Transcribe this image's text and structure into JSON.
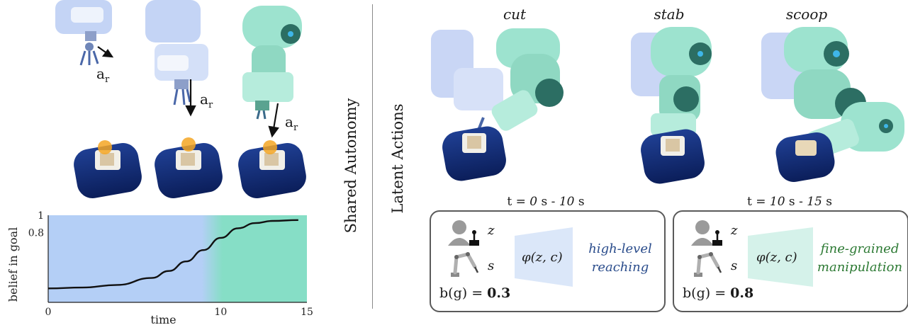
{
  "left": {
    "action_label": "a",
    "action_sub": "r",
    "belief_plot": {
      "ylabel": "belief in goal",
      "xlabel": "time",
      "y_ticks": [
        "1",
        "0.8"
      ],
      "x_ticks": [
        "0",
        "10",
        "15"
      ],
      "regions": [
        {
          "from": 0,
          "to": 9.5,
          "color": "#b4cff6"
        },
        {
          "from": 9.5,
          "to": 15,
          "color": "#86dec6"
        }
      ]
    }
  },
  "divider_label": "Shared Autonomy",
  "right": {
    "side_label": "Latent Actions",
    "columns": [
      {
        "title": "cut",
        "arm_color": "#9de3cf"
      },
      {
        "title": "stab",
        "arm_color": "#9de3cf"
      },
      {
        "title": "scoop",
        "arm_color": "#9de3cf"
      }
    ],
    "panels": [
      {
        "time_label": {
          "prefix": "t = ",
          "start": "0",
          "mid": " s - ",
          "end": "10",
          "suffix": " s"
        },
        "z": "z",
        "s": "s",
        "phi": "φ(z, c)",
        "phase": [
          "high-level",
          "reaching"
        ],
        "phase_color": "#2b4d8c",
        "trap_color": "#dbe7f9",
        "belief": {
          "prefix": "b(g) = ",
          "value": "0.3"
        }
      },
      {
        "time_label": {
          "prefix": "t = ",
          "start": "10",
          "mid": " s - ",
          "end": "15",
          "suffix": " s"
        },
        "z": "z",
        "s": "s",
        "phi": "φ(z, c)",
        "phase": [
          "fine-grained",
          "manipulation"
        ],
        "phase_color": "#2d7a34",
        "trap_color": "#d5f2ea",
        "belief": {
          "prefix": "b(g) = ",
          "value": "0.8"
        }
      }
    ]
  },
  "chart_data": {
    "type": "line",
    "title": "",
    "xlabel": "time",
    "ylabel": "belief in goal",
    "x": [
      0,
      2,
      4,
      6,
      7,
      8,
      9,
      10,
      11,
      12,
      13,
      14.5
    ],
    "series": [
      {
        "values": [
          0.16,
          0.17,
          0.2,
          0.28,
          0.36,
          0.47,
          0.6,
          0.74,
          0.85,
          0.91,
          0.935,
          0.945
        ]
      }
    ],
    "xlim": [
      0,
      15
    ],
    "ylim": [
      0,
      1
    ],
    "x_ticks": [
      0,
      10,
      15
    ],
    "y_ticks": [
      0.8,
      1
    ],
    "grid": false
  }
}
